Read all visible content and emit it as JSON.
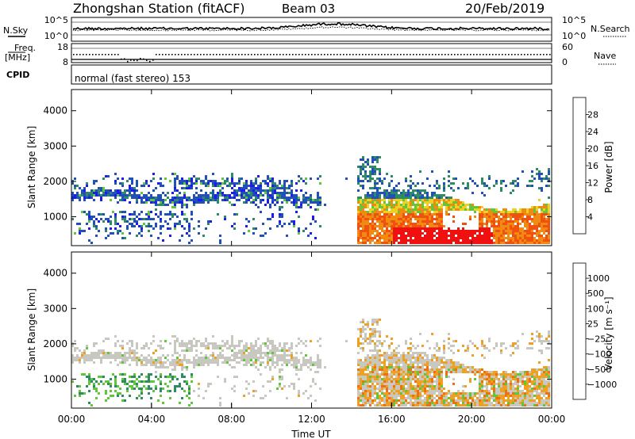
{
  "header": {
    "station": "Zhongshan Station (fitACF)",
    "beam": "Beam 03",
    "date": "20/Feb/2019"
  },
  "noise_panel": {
    "left_label": "N.Sky",
    "left_ticks": [
      "10^5",
      "10^0"
    ],
    "right_ticks": [
      "10^5",
      "10^0"
    ],
    "right_label": "N.Search"
  },
  "freq_panel": {
    "left_label_1": "Freq.",
    "left_label_2": "[MHz]",
    "left_ticks": [
      "18",
      "8"
    ],
    "right_ticks": [
      "60",
      "0"
    ],
    "right_label": "Nave",
    "cpid_label": "CPID",
    "cpid_text": "normal (fast stereo) 153"
  },
  "chart_data": [
    {
      "type": "heatmap",
      "name": "power",
      "ylabel": "Slant Range [km]",
      "xlabel": "",
      "ylim": [
        180,
        4600
      ],
      "yticks": [
        1000,
        2000,
        3000,
        4000
      ],
      "colorbar_label": "Power [dB]",
      "colorbar_ticks": [
        "4",
        "8",
        "12",
        "16",
        "20",
        "24",
        "28"
      ],
      "colors": [
        "#1c1cf0",
        "#2050b8",
        "#2e8c64",
        "#5ec83a",
        "#f0d020",
        "#f08a10",
        "#f05010",
        "#f01010"
      ]
    },
    {
      "type": "heatmap",
      "name": "velocity",
      "ylabel": "Slant Range [km]",
      "xlabel": "Time UT",
      "ylim": [
        180,
        4600
      ],
      "yticks": [
        1000,
        2000,
        3000,
        4000
      ],
      "xticks": [
        "00:00",
        "04:00",
        "08:00",
        "12:00",
        "16:00",
        "20:00",
        "00:00"
      ],
      "colorbar_label": "Velocity [m s⁻¹]",
      "colorbar_ticks": [
        "1000",
        "500",
        "100",
        "25",
        "−25",
        "−100",
        "−500",
        "−1000"
      ],
      "colors": [
        "#1c1cf0",
        "#2050b8",
        "#2e8c64",
        "#5ec83a",
        "#c8c8c0",
        "#f0a020",
        "#f07010",
        "#f04010",
        "#f01010"
      ]
    }
  ]
}
